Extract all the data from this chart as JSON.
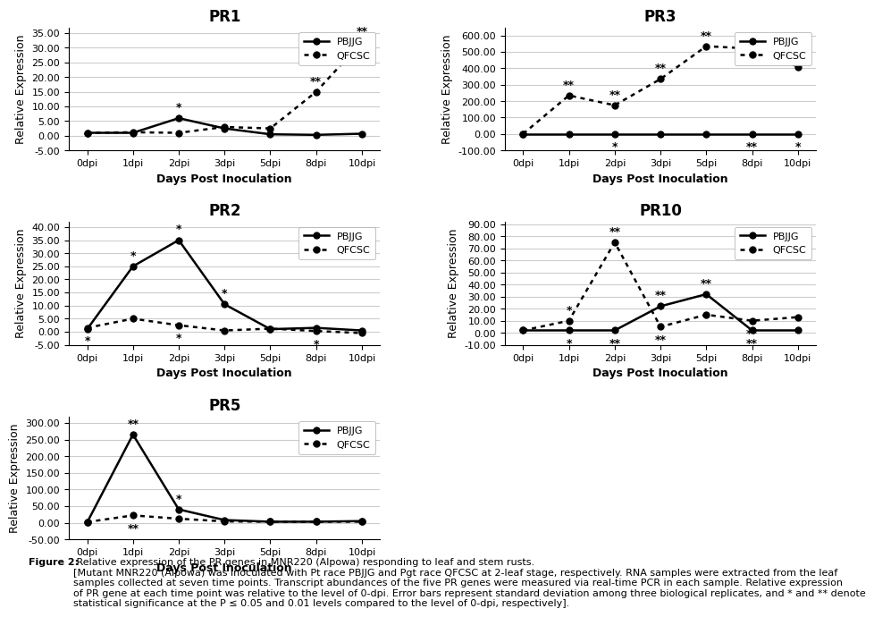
{
  "x_labels": [
    "0dpi",
    "1dpi",
    "2dpi",
    "3dpi",
    "5dpi",
    "8dpi",
    "10dpi"
  ],
  "x_vals": [
    0,
    1,
    2,
    3,
    4,
    5,
    6
  ],
  "PR1": {
    "title": "PR1",
    "PBJJG": [
      1.0,
      1.0,
      6.0,
      2.5,
      0.5,
      0.3,
      0.7
    ],
    "QFCSC": [
      1.0,
      1.2,
      1.0,
      3.0,
      2.5,
      15.0,
      32.0
    ],
    "ylim": [
      -5.0,
      37.0
    ],
    "yticks": [
      -5.0,
      0.0,
      5.0,
      10.0,
      15.0,
      20.0,
      25.0,
      30.0,
      35.0
    ],
    "annotations_PBJJG": [
      "",
      "",
      "*",
      "",
      "",
      "",
      ""
    ],
    "annotations_QFCSC": [
      "",
      "",
      "",
      "",
      "",
      "**",
      "**"
    ],
    "ann_above_PBJJG": [
      true,
      true,
      true,
      true,
      true,
      true,
      true
    ],
    "ann_above_QFCSC": [
      true,
      true,
      true,
      true,
      true,
      true,
      true
    ]
  },
  "PR3": {
    "title": "PR3",
    "PBJJG": [
      1.0,
      1.0,
      1.0,
      1.0,
      1.0,
      1.0,
      1.0
    ],
    "QFCSC": [
      1.0,
      235.0,
      175.0,
      335.0,
      535.0,
      520.0,
      410.0
    ],
    "ylim": [
      -100.0,
      650.0
    ],
    "yticks": [
      -100.0,
      0.0,
      100.0,
      200.0,
      300.0,
      400.0,
      500.0,
      600.0
    ],
    "annotations_PBJJG": [
      "",
      "",
      "*",
      "",
      "",
      "**",
      "*"
    ],
    "annotations_QFCSC": [
      "",
      "**",
      "**",
      "**",
      "**",
      "**",
      "**"
    ],
    "ann_above_PBJJG": [
      true,
      true,
      false,
      true,
      true,
      false,
      false
    ],
    "ann_above_QFCSC": [
      true,
      true,
      true,
      true,
      true,
      true,
      true
    ]
  },
  "PR2": {
    "title": "PR2",
    "PBJJG": [
      1.0,
      25.0,
      35.0,
      10.5,
      1.0,
      1.5,
      0.5
    ],
    "QFCSC": [
      1.5,
      5.0,
      2.5,
      0.5,
      1.2,
      0.3,
      -0.5
    ],
    "ylim": [
      -5.0,
      42.0
    ],
    "yticks": [
      -5.0,
      0.0,
      5.0,
      10.0,
      15.0,
      20.0,
      25.0,
      30.0,
      35.0,
      40.0
    ],
    "annotations_PBJJG": [
      "",
      "*",
      "*",
      "*",
      "",
      "",
      ""
    ],
    "annotations_QFCSC": [
      "*",
      "",
      "*",
      "",
      "",
      "*",
      ""
    ],
    "ann_above_PBJJG": [
      true,
      true,
      true,
      true,
      true,
      true,
      true
    ],
    "ann_above_QFCSC": [
      false,
      true,
      false,
      true,
      true,
      false,
      true
    ]
  },
  "PR10": {
    "title": "PR10",
    "PBJJG": [
      2.0,
      2.0,
      2.0,
      22.0,
      32.0,
      2.0,
      2.0
    ],
    "QFCSC": [
      2.0,
      10.0,
      75.0,
      5.0,
      15.0,
      10.0,
      13.0
    ],
    "ylim": [
      -10.0,
      92.0
    ],
    "yticks": [
      -10.0,
      0.0,
      10.0,
      20.0,
      30.0,
      40.0,
      50.0,
      60.0,
      70.0,
      80.0,
      90.0
    ],
    "annotations_PBJJG": [
      "",
      "*",
      "**",
      "**",
      "**",
      "**",
      "*"
    ],
    "annotations_QFCSC": [
      "",
      "*",
      "**",
      "**",
      "",
      "**",
      ""
    ],
    "ann_above_PBJJG": [
      true,
      false,
      false,
      true,
      true,
      false,
      true
    ],
    "ann_above_QFCSC": [
      true,
      true,
      true,
      false,
      true,
      false,
      true
    ]
  },
  "PR5": {
    "title": "PR5",
    "PBJJG": [
      1.0,
      265.0,
      40.0,
      8.0,
      3.0,
      3.0,
      5.0
    ],
    "QFCSC": [
      2.0,
      22.0,
      12.0,
      4.0,
      3.0,
      3.0,
      3.0
    ],
    "ylim": [
      -50.0,
      320.0
    ],
    "yticks": [
      -50.0,
      0.0,
      50.0,
      100.0,
      150.0,
      200.0,
      250.0,
      300.0
    ],
    "annotations_PBJJG": [
      "",
      "**",
      "*",
      "",
      "",
      "",
      ""
    ],
    "annotations_QFCSC": [
      "",
      "**",
      "",
      "",
      "",
      "",
      ""
    ],
    "ann_above_PBJJG": [
      true,
      true,
      true,
      true,
      true,
      true,
      true
    ],
    "ann_above_QFCSC": [
      true,
      false,
      true,
      true,
      true,
      true,
      true
    ]
  },
  "ylabel": "Relative Expression",
  "xlabel": "Days Post Inoculation",
  "legend_PBJJG": "PBJJG",
  "legend_QFCSC": "QFCSC",
  "title_fontsize": 12,
  "axis_label_fontsize": 9,
  "tick_fontsize": 8,
  "annot_fontsize": 9,
  "caption_bold": "Figure 2:",
  "caption_rest": " Relative expression of the PR genes in MNR220 (Alpowa) responding to leaf and stem rusts.\n[Mutant MNR220 (Alpowa) was inoculated with Pt race PBJJG and Pgt race QFCSC at 2-leaf stage, respectively. RNA samples were extracted from the leaf\nsamples collected at seven time points. Transcript abundances of the five PR genes were measured via real-time PCR in each sample. Relative expression\nof PR gene at each time point was relative to the level of 0-dpi. Error bars represent standard deviation among three biological replicates, and * and ** denote\nstatistical significance at the P ≤ 0.05 and 0.01 levels compared to the level of 0-dpi, respectively]."
}
